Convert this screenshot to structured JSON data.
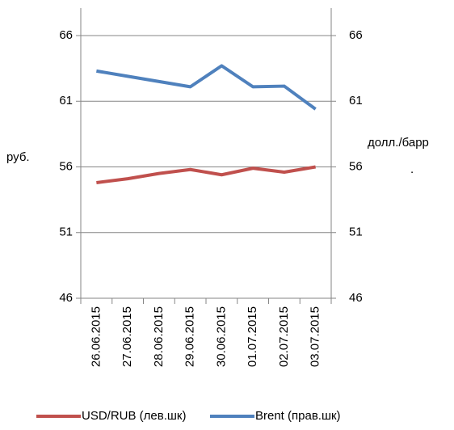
{
  "chart_data": {
    "type": "line",
    "categories": [
      "26.06.2015",
      "27.06.2015",
      "28.06.2015",
      "29.06.2015",
      "30.06.2015",
      "01.07.2015",
      "02.07.2015",
      "03.07.2015"
    ],
    "series": [
      {
        "name": "USD/RUB (лев.шк)",
        "color": "#c0504d",
        "values": [
          54.8,
          55.1,
          55.5,
          55.8,
          55.4,
          55.9,
          55.6,
          56.0
        ]
      },
      {
        "name": "Brent (прав.шк)",
        "color": "#4f81bd",
        "axis": "y2",
        "values": [
          63.3,
          62.9,
          62.5,
          62.1,
          63.7,
          62.1,
          62.15,
          60.4
        ]
      }
    ],
    "ylabel": "руб.",
    "y2label": [
      "долл./барр",
      "."
    ],
    "ylim": [
      46,
      66
    ],
    "yticks": [
      46,
      51,
      56,
      61,
      66
    ],
    "y2lim": [
      46,
      66
    ],
    "y2ticks": [
      46,
      51,
      56,
      61,
      66
    ],
    "grid": true,
    "legend": "bottom"
  }
}
